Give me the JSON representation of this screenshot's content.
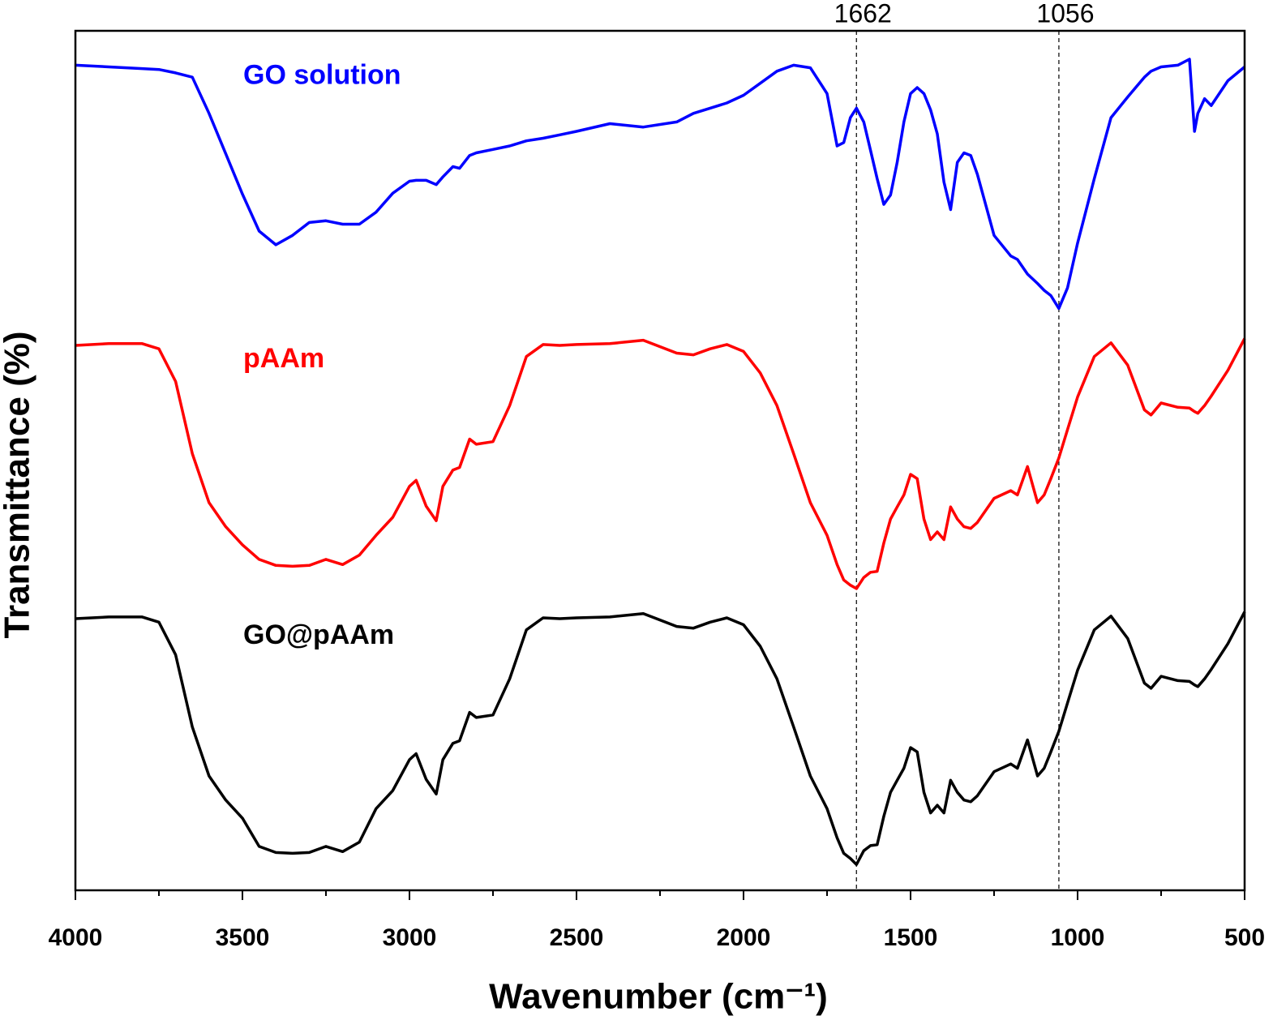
{
  "chart_data": {
    "type": "line",
    "xlabel": "Wavenumber (cm⁻¹)",
    "ylabel": "Transmittance (%)",
    "x": [
      4000,
      3900,
      3800,
      3750,
      3700,
      3650,
      3600,
      3550,
      3500,
      3450,
      3400,
      3350,
      3300,
      3250,
      3200,
      3150,
      3100,
      3050,
      3000,
      2980,
      2950,
      2920,
      2900,
      2870,
      2850,
      2820,
      2800,
      2750,
      2700,
      2650,
      2600,
      2550,
      2500,
      2400,
      2300,
      2200,
      2150,
      2100,
      2050,
      2000,
      1950,
      1900,
      1850,
      1800,
      1750,
      1720,
      1700,
      1680,
      1662,
      1640,
      1620,
      1600,
      1580,
      1560,
      1540,
      1520,
      1500,
      1480,
      1460,
      1440,
      1420,
      1400,
      1380,
      1360,
      1340,
      1320,
      1300,
      1250,
      1200,
      1180,
      1150,
      1120,
      1100,
      1080,
      1056,
      1030,
      1000,
      950,
      900,
      850,
      800,
      780,
      750,
      700,
      665,
      650,
      640,
      620,
      600,
      550,
      500
    ],
    "series": [
      {
        "name": "GO solution",
        "color": "#0000ff",
        "values": [
          96.0,
          95.8,
          95.6,
          95.5,
          95.1,
          94.6,
          90.4,
          85.7,
          81.0,
          76.7,
          75.1,
          76.2,
          77.7,
          77.9,
          77.5,
          77.5,
          78.9,
          81.1,
          82.5,
          82.6,
          82.6,
          82.1,
          83.0,
          84.2,
          84.0,
          85.5,
          85.8,
          86.2,
          86.6,
          87.2,
          87.5,
          87.9,
          88.3,
          89.2,
          88.8,
          89.4,
          90.4,
          91.0,
          91.6,
          92.5,
          93.9,
          95.3,
          96.0,
          95.7,
          92.7,
          86.6,
          87.0,
          89.9,
          91.0,
          89.4,
          86.1,
          82.8,
          79.8,
          80.9,
          84.7,
          89.4,
          92.7,
          93.4,
          92.7,
          90.8,
          88.0,
          82.4,
          79.2,
          84.7,
          85.8,
          85.5,
          83.3,
          76.2,
          73.8,
          73.4,
          71.7,
          70.6,
          69.8,
          69.2,
          67.7,
          70.1,
          75.3,
          82.8,
          89.9,
          92.3,
          94.6,
          95.3,
          95.8,
          96.0,
          96.7,
          88.3,
          90.4,
          92.1,
          91.3,
          94.2,
          95.8
        ]
      },
      {
        "name": "pAAm",
        "color": "#ff0000",
        "values": [
          63.4,
          63.6,
          63.6,
          63.0,
          59.2,
          50.8,
          45.1,
          42.3,
          40.2,
          38.5,
          37.8,
          37.7,
          37.8,
          38.5,
          37.9,
          39.0,
          41.3,
          43.4,
          47.0,
          47.7,
          44.7,
          43.0,
          47.0,
          48.9,
          49.2,
          52.5,
          51.9,
          52.2,
          56.4,
          62.1,
          63.5,
          63.4,
          63.5,
          63.6,
          64.0,
          62.5,
          62.3,
          63.0,
          63.5,
          62.7,
          60.2,
          56.4,
          50.8,
          45.1,
          41.3,
          37.9,
          36.1,
          35.5,
          35.1,
          36.4,
          37.0,
          37.1,
          40.4,
          43.2,
          44.6,
          46.0,
          48.4,
          47.9,
          43.2,
          40.8,
          41.7,
          40.8,
          44.6,
          43.2,
          42.3,
          42.1,
          42.8,
          45.6,
          46.5,
          46.0,
          49.3,
          45.1,
          46.0,
          47.9,
          50.3,
          53.6,
          57.4,
          62.1,
          63.7,
          61.1,
          55.9,
          55.3,
          56.7,
          56.2,
          56.1,
          55.7,
          55.5,
          56.4,
          57.5,
          60.5,
          64.2
        ]
      },
      {
        "name": "GO@pAAm",
        "color": "#000000",
        "values": [
          31.6,
          31.8,
          31.8,
          31.2,
          27.4,
          19.0,
          13.3,
          10.5,
          8.4,
          5.1,
          4.4,
          4.3,
          4.4,
          5.1,
          4.5,
          5.6,
          9.5,
          11.6,
          15.2,
          15.9,
          12.9,
          11.2,
          15.2,
          17.1,
          17.4,
          20.7,
          20.1,
          20.4,
          24.6,
          30.3,
          31.7,
          31.6,
          31.7,
          31.8,
          32.2,
          30.7,
          30.5,
          31.2,
          31.7,
          30.9,
          28.4,
          24.6,
          19.0,
          13.3,
          9.5,
          6.1,
          4.3,
          3.7,
          3.0,
          4.6,
          5.2,
          5.3,
          8.6,
          11.4,
          12.8,
          14.2,
          16.6,
          16.1,
          11.4,
          9.0,
          9.9,
          9.0,
          12.8,
          11.4,
          10.5,
          10.3,
          11.0,
          13.8,
          14.7,
          14.2,
          17.5,
          13.3,
          14.2,
          16.1,
          18.5,
          21.8,
          25.6,
          30.3,
          31.9,
          29.3,
          24.1,
          23.5,
          24.9,
          24.4,
          24.3,
          23.9,
          23.7,
          24.6,
          25.7,
          28.7,
          32.4
        ]
      }
    ],
    "xlim": [
      4000,
      500
    ],
    "xticks": [
      4000,
      3500,
      3000,
      2500,
      2000,
      1500,
      1000,
      500
    ],
    "xminor_ticks": [
      3750,
      3250,
      2750,
      2250,
      1750,
      1250,
      750
    ],
    "ylim": [
      0,
      100
    ],
    "vlines": [
      1662,
      1056
    ]
  }
}
